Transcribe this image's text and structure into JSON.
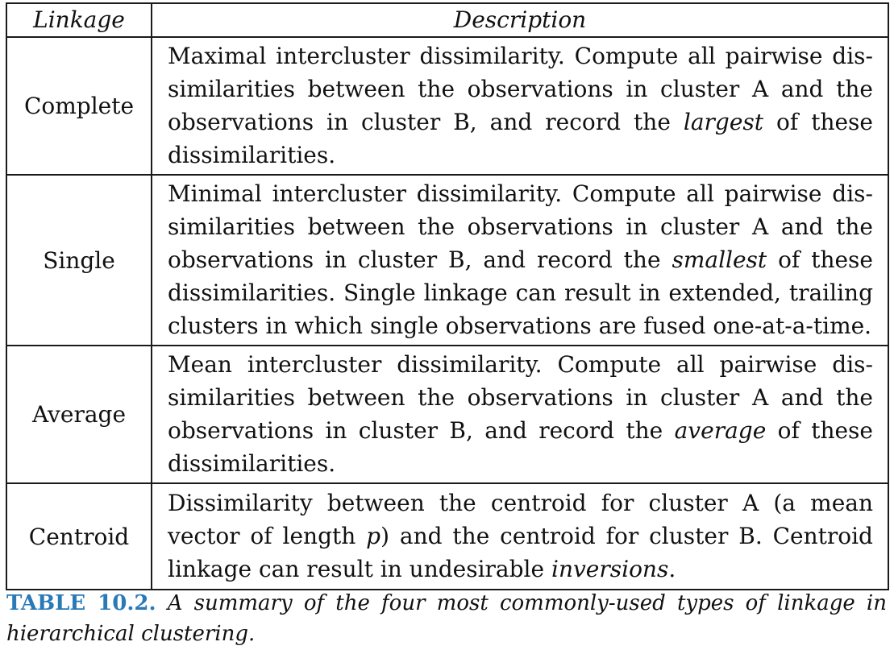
{
  "table": {
    "headers": {
      "linkage": "Linkage",
      "description": "Description"
    },
    "rows": [
      {
        "name": "Complete",
        "desc_before": "Maximal intercluster dissimilarity. Compute all pairwise dis­similarities between the observations in cluster A and the observations in cluster B, and record the ",
        "desc_emph": "largest",
        "desc_after": " of these dissimilarities."
      },
      {
        "name": "Single",
        "desc_before": "Minimal intercluster dissimilarity. Compute all pairwise dis­similarities between the observations in cluster A and the observations in cluster B, and record the ",
        "desc_emph": "smallest",
        "desc_after": " of these dissimilarities. Single linkage can result in extended, trailing clusters in which single observations are fused one-at-a-time."
      },
      {
        "name": "Average",
        "desc_before": "Mean intercluster dissimilarity. Compute all pairwise dis­similarities between the observations in cluster A and the observations in cluster B, and record the ",
        "desc_emph": "average",
        "desc_after": " of these dissimilarities."
      },
      {
        "name": "Centroid",
        "desc_before": "Dissimilarity between the centroid for cluster A (a mean vector of length ",
        "desc_emph": "p",
        "desc_mid": ") and the centroid for cluster B. Centroid linkage can result in undesirable ",
        "desc_emph2": "inversions",
        "desc_after": "."
      }
    ]
  },
  "caption": {
    "label": "TABLE 10.2.",
    "text": " A summary of the four most commonly-used types of linkage in hierarchical clustering."
  },
  "colors": {
    "caption_label": "#2a7ab8",
    "rule": "#1a1a1a"
  }
}
